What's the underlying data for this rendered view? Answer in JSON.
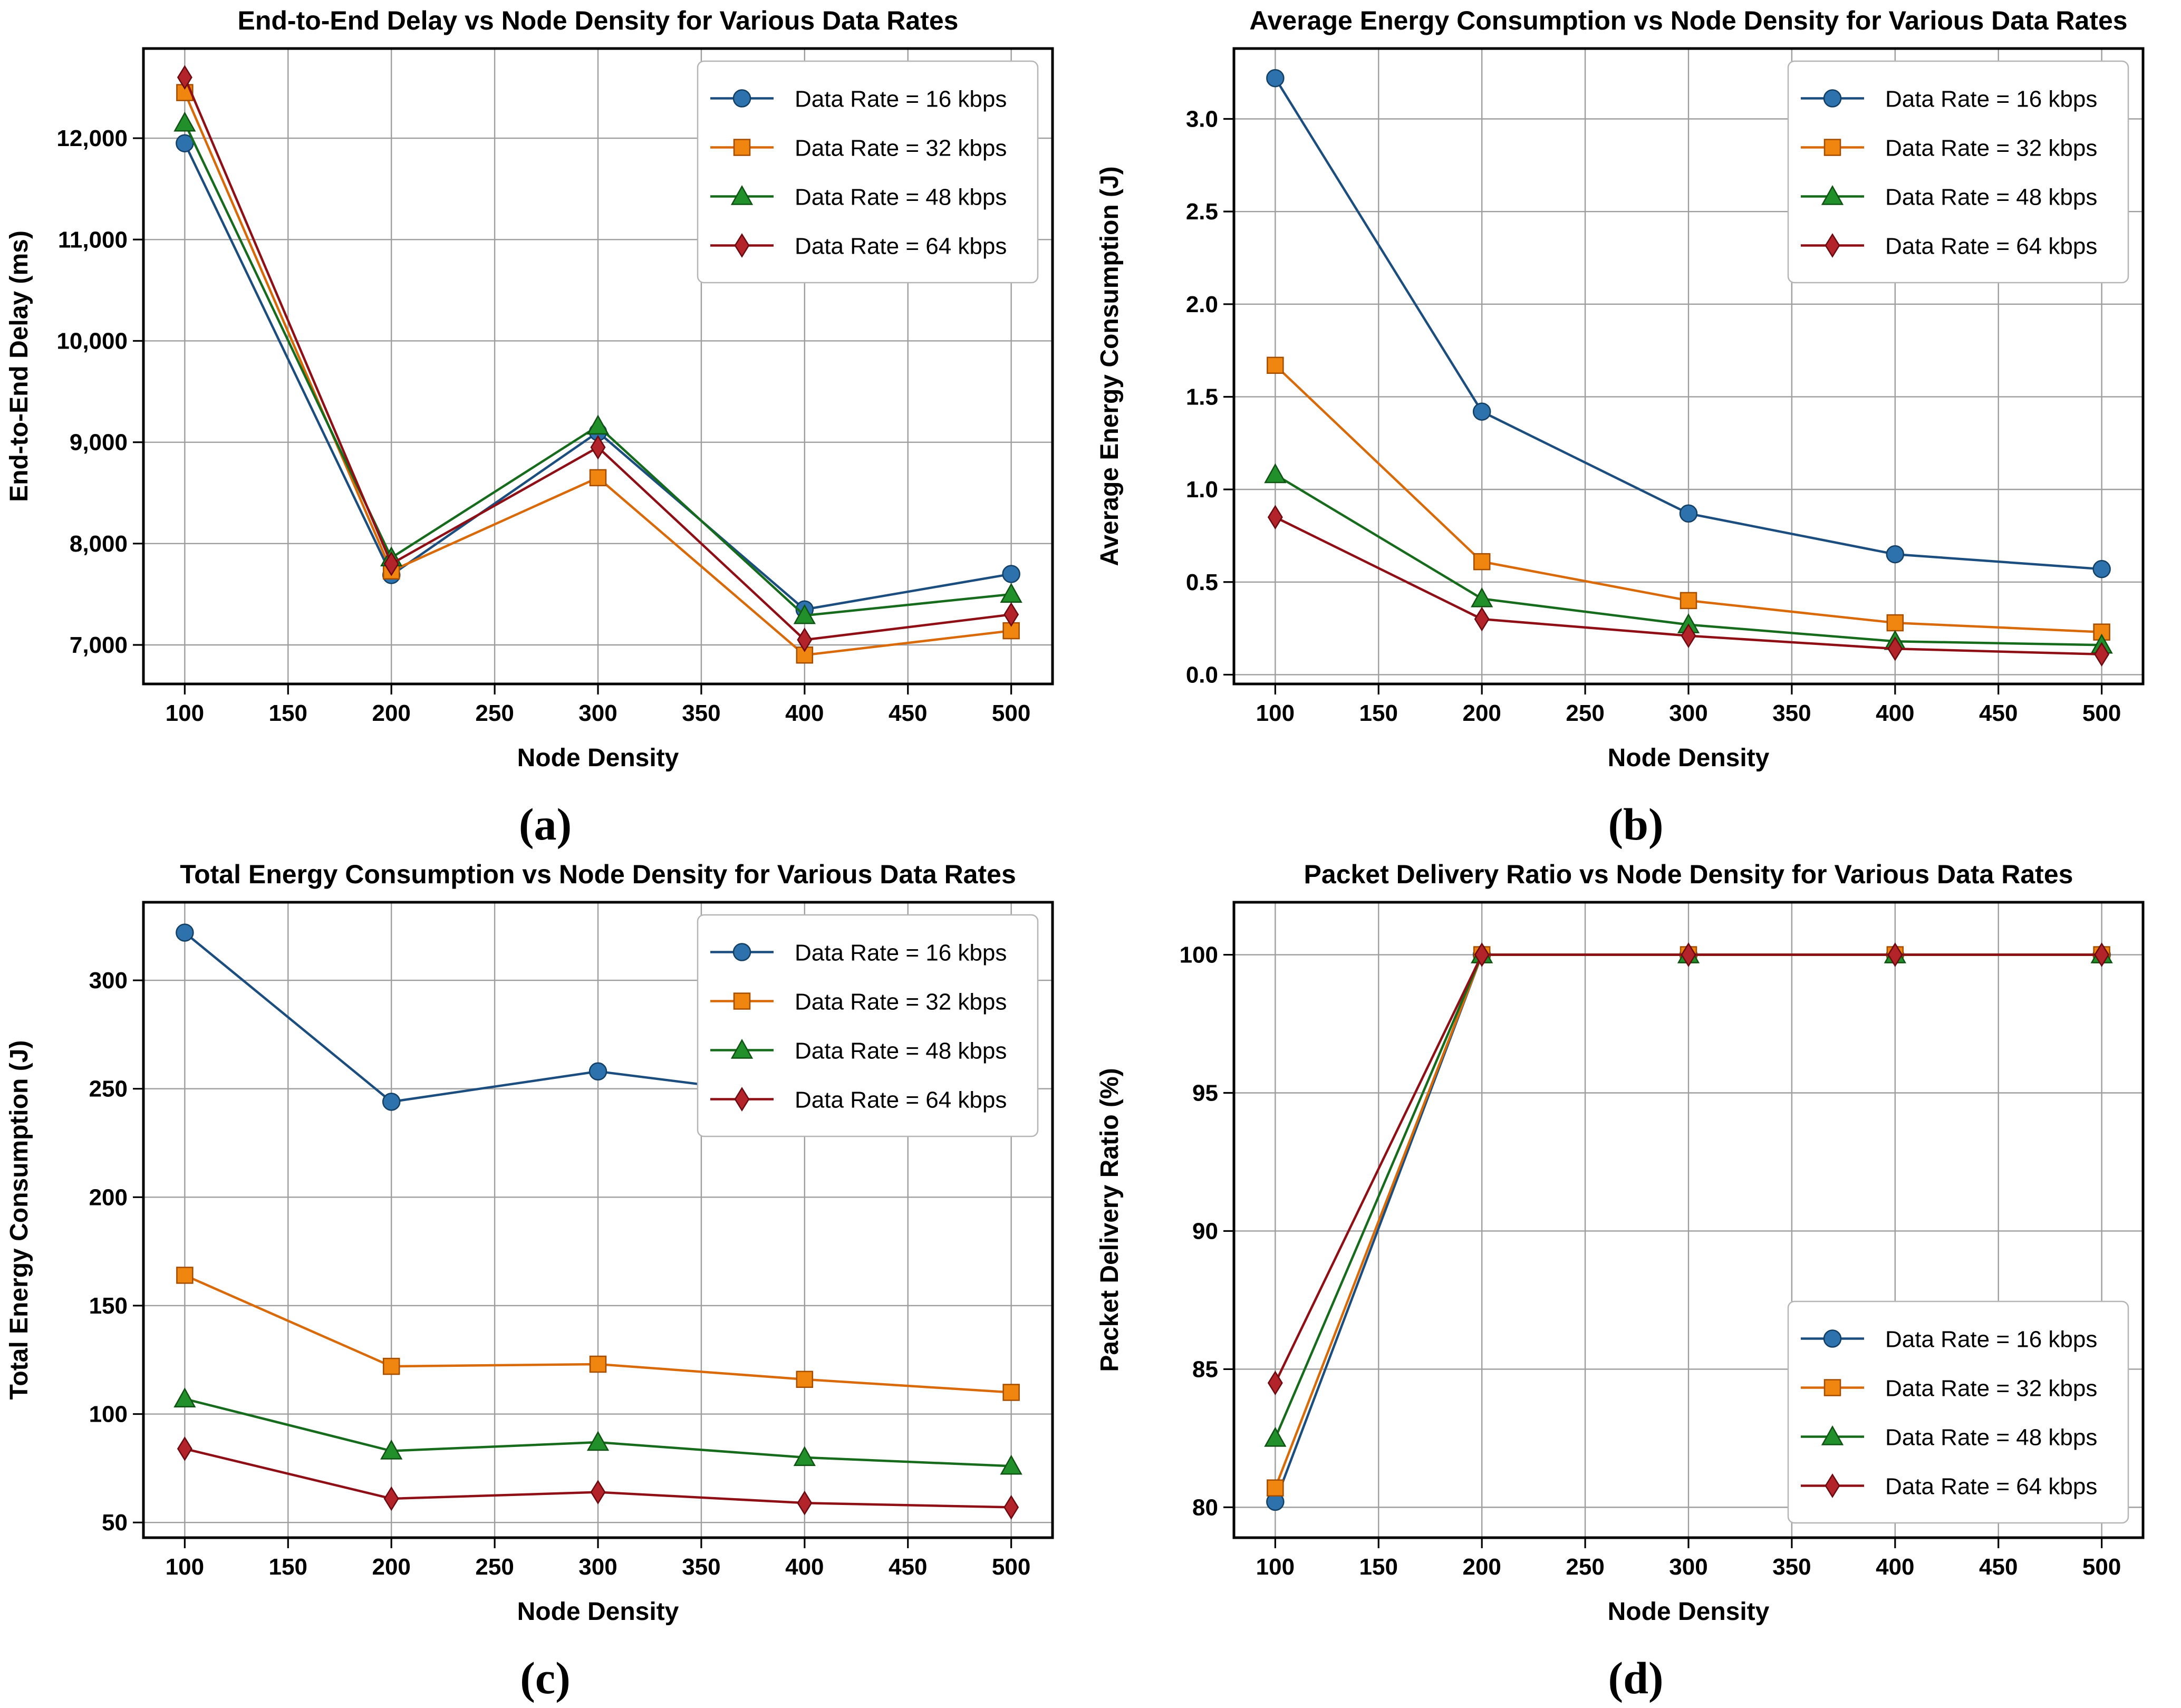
{
  "figure": {
    "background": "#ffffff",
    "grid_color": "#9e9e9e",
    "spine_color": "#000000",
    "captions": [
      "(a)",
      "(b)",
      "(c)",
      "(d)"
    ]
  },
  "chart_data": [
    {
      "id": "a",
      "type": "line",
      "title": "End-to-End Delay vs Node Density for Various Data Rates",
      "xlabel": "Node Density",
      "ylabel": "End-to-End Delay (ms)",
      "caption": "(a)",
      "grid": true,
      "legend_position": "top-right",
      "x": [
        100,
        200,
        300,
        400,
        500
      ],
      "xticks": [
        100,
        150,
        200,
        250,
        300,
        350,
        400,
        450,
        500
      ],
      "xlim": [
        80,
        520
      ],
      "yticks": [
        7000,
        8000,
        9000,
        10000,
        11000,
        12000
      ],
      "ylim": [
        6615,
        12885
      ],
      "ytick_format": "comma",
      "series": [
        {
          "name": "Data Rate = 16 kbps",
          "marker": "circle",
          "line_color": "#1b4e7e",
          "fill_color": "#2d72ad",
          "edge_color": "#123f63",
          "values": [
            11950,
            7690,
            9100,
            7350,
            7700
          ]
        },
        {
          "name": "Data Rate = 32 kbps",
          "marker": "square",
          "line_color": "#d96a0a",
          "fill_color": "#f0850f",
          "edge_color": "#a34d00",
          "values": [
            12450,
            7730,
            8650,
            6900,
            7140
          ]
        },
        {
          "name": "Data Rate = 48 kbps",
          "marker": "triangle",
          "line_color": "#176b1d",
          "fill_color": "#22902a",
          "edge_color": "#0f5214",
          "values": [
            12150,
            7860,
            9160,
            7290,
            7500
          ]
        },
        {
          "name": "Data Rate = 64 kbps",
          "marker": "diamond",
          "line_color": "#8e1016",
          "fill_color": "#b3232a",
          "edge_color": "#6a0a10",
          "values": [
            12600,
            7800,
            8950,
            7050,
            7300
          ]
        }
      ]
    },
    {
      "id": "b",
      "type": "line",
      "title": "Average Energy Consumption vs Node Density for Various Data Rates",
      "xlabel": "Node Density",
      "ylabel": "Average Energy Consumption (J)",
      "caption": "(b)",
      "grid": true,
      "legend_position": "top-right",
      "x": [
        100,
        200,
        300,
        400,
        500
      ],
      "xticks": [
        100,
        150,
        200,
        250,
        300,
        350,
        400,
        450,
        500
      ],
      "xlim": [
        80,
        520
      ],
      "yticks": [
        0.0,
        0.5,
        1.0,
        1.5,
        2.0,
        2.5,
        3.0
      ],
      "ylim": [
        -0.05,
        3.38
      ],
      "ytick_format": "decimal1",
      "series": [
        {
          "name": "Data Rate = 16 kbps",
          "marker": "circle",
          "line_color": "#1b4e7e",
          "fill_color": "#2d72ad",
          "edge_color": "#123f63",
          "values": [
            3.22,
            1.42,
            0.87,
            0.65,
            0.57
          ]
        },
        {
          "name": "Data Rate = 32 kbps",
          "marker": "square",
          "line_color": "#d96a0a",
          "fill_color": "#f0850f",
          "edge_color": "#a34d00",
          "values": [
            1.67,
            0.61,
            0.4,
            0.28,
            0.23
          ]
        },
        {
          "name": "Data Rate = 48 kbps",
          "marker": "triangle",
          "line_color": "#176b1d",
          "fill_color": "#22902a",
          "edge_color": "#0f5214",
          "values": [
            1.08,
            0.41,
            0.27,
            0.18,
            0.16
          ]
        },
        {
          "name": "Data Rate = 64 kbps",
          "marker": "diamond",
          "line_color": "#8e1016",
          "fill_color": "#b3232a",
          "edge_color": "#6a0a10",
          "values": [
            0.85,
            0.3,
            0.21,
            0.14,
            0.11
          ]
        }
      ]
    },
    {
      "id": "c",
      "type": "line",
      "title": "Total Energy Consumption vs Node Density for Various Data Rates",
      "xlabel": "Node Density",
      "ylabel": "Total Energy Consumption (J)",
      "caption": "(c)",
      "grid": true,
      "legend_position": "top-right",
      "x": [
        100,
        200,
        300,
        400,
        500
      ],
      "xticks": [
        100,
        150,
        200,
        250,
        300,
        350,
        400,
        450,
        500
      ],
      "xlim": [
        80,
        520
      ],
      "yticks": [
        50,
        100,
        150,
        200,
        250,
        300
      ],
      "ylim": [
        43,
        336
      ],
      "ytick_format": "int",
      "series": [
        {
          "name": "Data Rate = 16 kbps",
          "marker": "circle",
          "line_color": "#1b4e7e",
          "fill_color": "#2d72ad",
          "edge_color": "#123f63",
          "values": [
            322,
            244,
            258,
            246,
            239
          ]
        },
        {
          "name": "Data Rate = 32 kbps",
          "marker": "square",
          "line_color": "#d96a0a",
          "fill_color": "#f0850f",
          "edge_color": "#a34d00",
          "values": [
            164,
            122,
            123,
            116,
            110
          ]
        },
        {
          "name": "Data Rate = 48 kbps",
          "marker": "triangle",
          "line_color": "#176b1d",
          "fill_color": "#22902a",
          "edge_color": "#0f5214",
          "values": [
            107,
            83,
            87,
            80,
            76
          ]
        },
        {
          "name": "Data Rate = 64 kbps",
          "marker": "diamond",
          "line_color": "#8e1016",
          "fill_color": "#b3232a",
          "edge_color": "#6a0a10",
          "values": [
            84,
            61,
            64,
            59,
            57
          ]
        }
      ]
    },
    {
      "id": "d",
      "type": "line",
      "title": "Packet Delivery Ratio vs Node Density for Various Data Rates",
      "xlabel": "Node Density",
      "ylabel": "Packet Delivery Ratio (%)",
      "caption": "(d)",
      "grid": true,
      "legend_position": "bottom-right",
      "x": [
        100,
        200,
        300,
        400,
        500
      ],
      "xticks": [
        100,
        150,
        200,
        250,
        300,
        350,
        400,
        450,
        500
      ],
      "xlim": [
        80,
        520
      ],
      "yticks": [
        80,
        85,
        90,
        95,
        100
      ],
      "ylim": [
        78.9,
        101.9
      ],
      "ytick_format": "int",
      "series": [
        {
          "name": "Data Rate = 16 kbps",
          "marker": "circle",
          "line_color": "#1b4e7e",
          "fill_color": "#2d72ad",
          "edge_color": "#123f63",
          "values": [
            80.2,
            100,
            100,
            100,
            100
          ]
        },
        {
          "name": "Data Rate = 32 kbps",
          "marker": "square",
          "line_color": "#d96a0a",
          "fill_color": "#f0850f",
          "edge_color": "#a34d00",
          "values": [
            80.7,
            100,
            100,
            100,
            100
          ]
        },
        {
          "name": "Data Rate = 48 kbps",
          "marker": "triangle",
          "line_color": "#176b1d",
          "fill_color": "#22902a",
          "edge_color": "#0f5214",
          "values": [
            82.5,
            100,
            100,
            100,
            100
          ]
        },
        {
          "name": "Data Rate = 64 kbps",
          "marker": "diamond",
          "line_color": "#8e1016",
          "fill_color": "#b3232a",
          "edge_color": "#6a0a10",
          "values": [
            84.5,
            100,
            100,
            100,
            100
          ]
        }
      ]
    }
  ]
}
